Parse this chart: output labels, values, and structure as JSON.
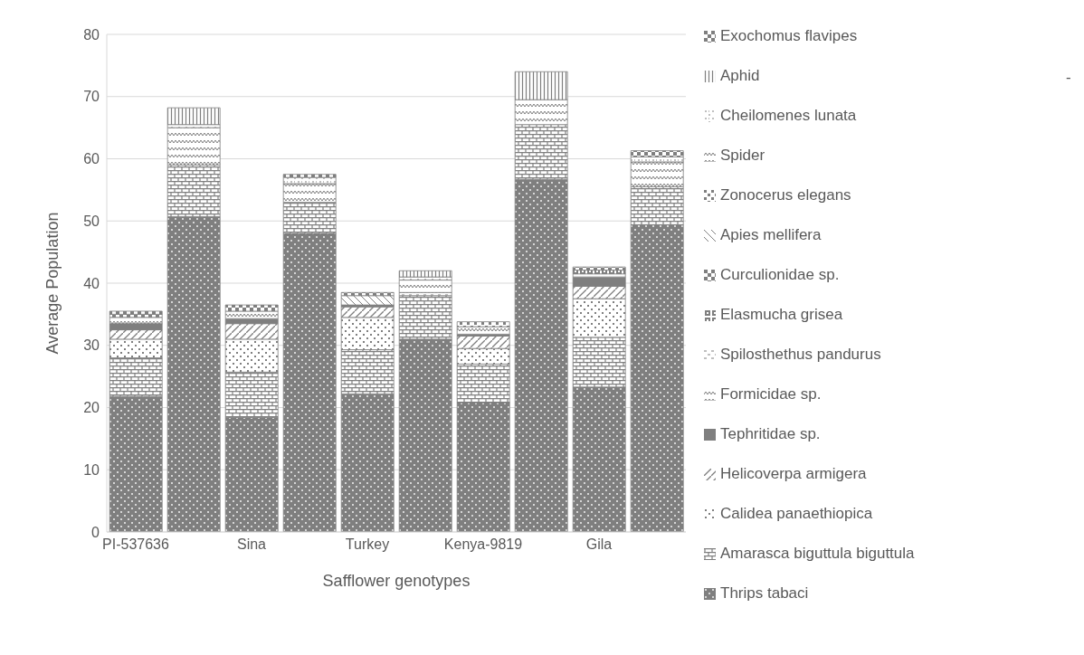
{
  "chart_data": {
    "type": "bar",
    "stacked": true,
    "xlabel": "Safflower genotypes",
    "ylabel": "Average Population",
    "categories": [
      "PI-537636",
      null,
      "Sina",
      null,
      "Turkey",
      null,
      "Kenya-9819",
      null,
      "Gila",
      null
    ],
    "ylim": [
      0,
      80
    ],
    "yticks": [
      0,
      10,
      20,
      30,
      40,
      50,
      60,
      70,
      80
    ],
    "grid": "y",
    "legend": "right",
    "annotations": [
      "-"
    ],
    "series": [
      {
        "name": "Thrips tabaci",
        "color": "#7f7f7f",
        "values": [
          21.8,
          50.7,
          18.4,
          48,
          22.2,
          31,
          20.8,
          56.7,
          23.3,
          49.4
        ]
      },
      {
        "name": "Amarasca biguttula biguttula",
        "color": "#7f7f7f",
        "values": [
          6.2,
          8.3,
          7.3,
          5,
          7.1,
          7,
          6.2,
          8.8,
          8,
          6.1
        ]
      },
      {
        "name": "Calidea panaethiopica",
        "color": "#7f7f7f",
        "values": [
          3,
          null,
          5.3,
          null,
          5.2,
          null,
          2.5,
          null,
          6.2,
          null
        ]
      },
      {
        "name": "Helicoverpa armigera",
        "color": "#7f7f7f",
        "values": [
          1.5,
          null,
          2.5,
          null,
          1.7,
          null,
          2,
          null,
          2,
          null
        ]
      },
      {
        "name": "Tephritidae sp.",
        "color": "#7f7f7f",
        "values": [
          1,
          null,
          0.8,
          null,
          0.3,
          null,
          0.3,
          null,
          1.5,
          null
        ]
      },
      {
        "name": "Formicidae sp.",
        "color": "#7f7f7f",
        "values": [
          1,
          null,
          1.2,
          null,
          null,
          null,
          1.2,
          null,
          0.5,
          null
        ]
      },
      {
        "name": "Spilosthethus pandurus",
        "color": "#7f7f7f",
        "values": [
          null,
          null,
          null,
          null,
          null,
          0.5,
          null,
          null,
          null,
          null
        ]
      },
      {
        "name": "Elasmucha grisea",
        "color": "#7f7f7f",
        "values": [
          null,
          null,
          null,
          null,
          null,
          null,
          null,
          null,
          0.6,
          null
        ]
      },
      {
        "name": "Curculionidae sp.",
        "color": "#7f7f7f",
        "values": [
          0.5,
          null,
          null,
          null,
          null,
          null,
          null,
          null,
          null,
          null
        ]
      },
      {
        "name": "Apies mellifera",
        "color": "#7f7f7f",
        "values": [
          null,
          null,
          null,
          null,
          1.5,
          null,
          null,
          null,
          null,
          null
        ]
      },
      {
        "name": "Zonocerus elegans",
        "color": "#7f7f7f",
        "values": [
          null,
          null,
          null,
          null,
          null,
          null,
          0.8,
          null,
          null,
          null
        ]
      },
      {
        "name": "Spider",
        "color": "#7f7f7f",
        "values": [
          null,
          6,
          null,
          3,
          null,
          2,
          null,
          4,
          null,
          4
        ]
      },
      {
        "name": "Cheilomenes lunata",
        "color": "#7f7f7f",
        "values": [
          null,
          0.5,
          null,
          1,
          null,
          0.5,
          null,
          null,
          null,
          0.8
        ]
      },
      {
        "name": "Aphid",
        "color": "#7f7f7f",
        "values": [
          null,
          2.7,
          null,
          null,
          null,
          1,
          null,
          4.5,
          null,
          null
        ]
      },
      {
        "name": "Exochomus flavipes",
        "color": "#7f7f7f",
        "values": [
          0.5,
          null,
          1,
          0.5,
          0.5,
          null,
          null,
          null,
          0.5,
          1
        ]
      }
    ]
  }
}
